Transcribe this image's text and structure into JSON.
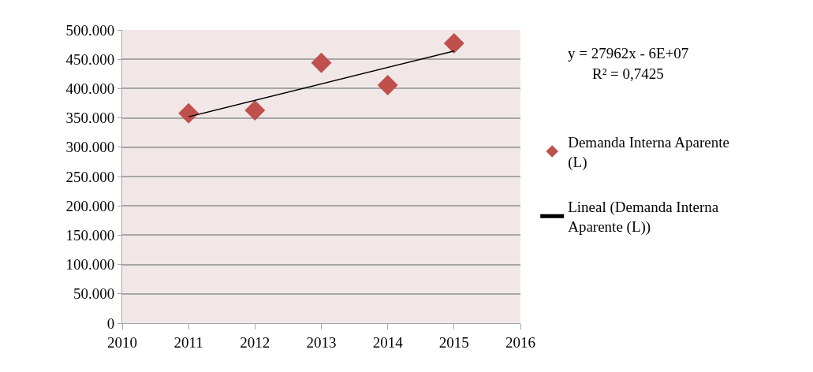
{
  "chart_data": {
    "type": "scatter",
    "x": [
      2011,
      2012,
      2013,
      2014,
      2015
    ],
    "series": [
      {
        "name": "Demanda Interna Aparente (L)",
        "color": "#c0504d",
        "values": [
          358000,
          363000,
          444000,
          406000,
          477000
        ],
        "marker": "diamond"
      },
      {
        "name": "Lineal (Demanda Interna Aparente (L))",
        "type": "line",
        "color": "#000000",
        "x": [
          2011,
          2015
        ],
        "values": [
          352000,
          464000
        ],
        "marker": "none",
        "line_style": "solid"
      }
    ],
    "xlim": [
      2010,
      2016
    ],
    "xticks": [
      2010,
      2011,
      2012,
      2013,
      2014,
      2015,
      2016
    ],
    "ylim": [
      0,
      500000
    ],
    "yticks": [
      0,
      {
        "value": 50000,
        "label": "50.000"
      },
      {
        "value": 100000,
        "label": "100.000"
      },
      {
        "value": 150000,
        "label": "150.000"
      },
      {
        "value": 200000,
        "label": "200.000"
      },
      {
        "value": 250000,
        "label": "250.000"
      },
      {
        "value": 300000,
        "label": "300.000"
      },
      {
        "value": 350000,
        "label": "350.000"
      },
      {
        "value": 400000,
        "label": "400.000"
      },
      {
        "value": 450000,
        "label": "450.000"
      },
      {
        "value": 500000,
        "label": "500.000"
      }
    ],
    "grid": "y",
    "legend": "right",
    "annotations": [
      "y = 27962x - 6E+07",
      "R² = 0,7425"
    ]
  }
}
